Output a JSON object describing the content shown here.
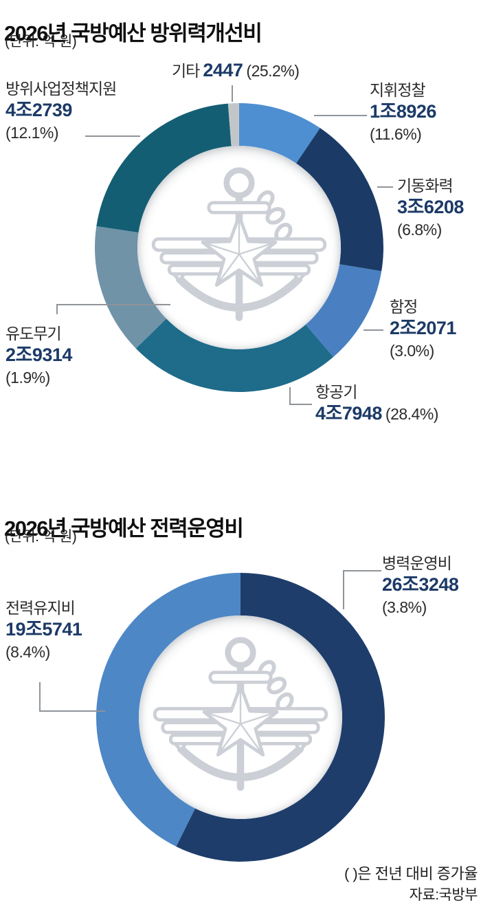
{
  "chart_data": [
    {
      "type": "pie",
      "subtype": "donut",
      "title": "2026년 국방예산 방위력개선비",
      "unit_label": "(단위: 억 원)",
      "legend_position": "outside-callouts",
      "note": "괄호 값은 전년 대비 증가율",
      "segments": [
        {
          "key": "command-recon",
          "name": "지휘정찰",
          "value": 18926,
          "display": "1조8926",
          "growth_display": "(11.6%)",
          "color": "#4e8fd2"
        },
        {
          "key": "mobile-firepower",
          "name": "기동화력",
          "value": 36208,
          "display": "3조6208",
          "growth_display": "(6.8%)",
          "color": "#1b3b66"
        },
        {
          "key": "ships",
          "name": "함정",
          "value": 22071,
          "display": "2조2071",
          "growth_display": "(3.0%)",
          "color": "#4a80c2"
        },
        {
          "key": "aircraft",
          "name": "항공기",
          "value": 47948,
          "display": "4조7948",
          "growth_display": "(28.4%)",
          "color": "#1e6b8a"
        },
        {
          "key": "guided-weapons",
          "name": "유도무기",
          "value": 29314,
          "display": "2조9314",
          "growth_display": "(1.9%)",
          "color": "#7093a8"
        },
        {
          "key": "defense-policy-support",
          "name": "방위사업정책지원",
          "value": 42739,
          "display": "4조2739",
          "growth_display": "(12.1%)",
          "color": "#145e74"
        },
        {
          "key": "other",
          "name": "기타",
          "value": 2447,
          "display": "2447",
          "growth_display": "(25.2%)",
          "color": "#c3c6c9"
        }
      ]
    },
    {
      "type": "pie",
      "subtype": "donut",
      "title": "2026년 국방예산 전력운영비",
      "unit_label": "(단위: 억 원)",
      "legend_position": "outside-callouts",
      "segments": [
        {
          "key": "personnel-operation",
          "name": "병력운영비",
          "value": 263248,
          "display": "26조3248",
          "growth_display": "(3.8%)",
          "color": "#1e3d6b"
        },
        {
          "key": "force-maintenance",
          "name": "전력유지비",
          "value": 195741,
          "display": "19조5741",
          "growth_display": "(8.4%)",
          "color": "#4d87c6"
        }
      ]
    }
  ],
  "footer": {
    "note": "(  )은 전년 대비 증가율",
    "source": "자료:국방부"
  },
  "colors": {
    "value_text": "#1c3a67",
    "label_text": "#2b2b2b",
    "leader_line": "#8f9499",
    "emblem_watermark": "#ccd0d6"
  }
}
